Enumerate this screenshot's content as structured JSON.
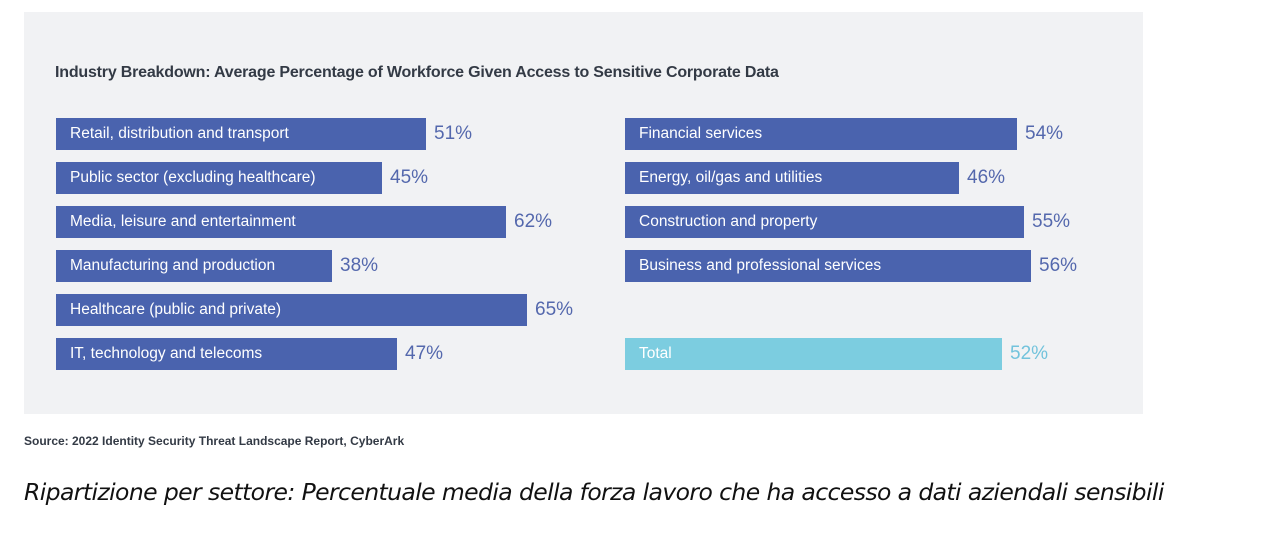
{
  "chart_data": {
    "type": "bar",
    "title": "Industry Breakdown: Average Percentage of Workforce Given Access to Sensitive Corporate Data",
    "xlim": [
      0,
      100
    ],
    "value_suffix": "%",
    "colors": {
      "bar": "#4a63ae",
      "value_text": "#5468ad",
      "total_bar": "#7ccde0",
      "total_text": "#72c3dc"
    },
    "columns": [
      {
        "categories": [
          "Retail, distribution and transport",
          "Public sector (excluding healthcare)",
          "Media, leisure and entertainment",
          "Manufacturing and production",
          "Healthcare (public and private)",
          "IT, technology and telecoms"
        ],
        "values": [
          51,
          45,
          62,
          38,
          65,
          47
        ]
      },
      {
        "categories": [
          "Financial services",
          "Energy, oil/gas and utilities",
          "Construction and property",
          "Business and professional services"
        ],
        "values": [
          54,
          46,
          55,
          56
        ]
      }
    ],
    "total": {
      "label": "Total",
      "value": 52
    }
  },
  "source": "Source: 2022 Identity Security Threat Landscape Report, CyberArk",
  "caption": "Ripartizione per settore: Percentuale media della forza lavoro che ha accesso a dati aziendali sensibili"
}
